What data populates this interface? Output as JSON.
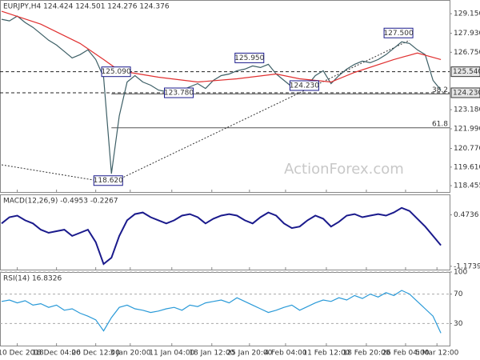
{
  "chart_data": [
    {
      "type": "line",
      "title": "EURJPY,H4 124.424 124.501 124.276 124.376",
      "watermark": "ActionForex.com",
      "ylim": [
        118.06,
        130.0
      ],
      "yticks": [
        {
          "value": 129.15,
          "label": "129.150"
        },
        {
          "value": 127.93,
          "label": "127.930"
        },
        {
          "value": 126.75,
          "label": "126.750"
        },
        {
          "value": 123.18,
          "label": "123.180"
        },
        {
          "value": 121.99,
          "label": "121.990"
        },
        {
          "value": 120.77,
          "label": "120.770"
        },
        {
          "value": 119.61,
          "label": "119.610"
        },
        {
          "value": 118.455,
          "label": "118.455"
        }
      ],
      "xlim": [
        0,
        56.5
      ],
      "xticks": [
        {
          "value": 2,
          "label": "10 Dec 2018"
        },
        {
          "value": 7,
          "label": "18 Dec 04:00"
        },
        {
          "value": 12,
          "label": "26 Dec 12:00"
        },
        {
          "value": 16.4,
          "label": "3 Jan 20:00"
        },
        {
          "value": 21.7,
          "label": "11 Jan 04:00"
        },
        {
          "value": 26.8,
          "label": "18 Jan 12:00"
        },
        {
          "value": 31.6,
          "label": "25 Jan 20:00"
        },
        {
          "value": 36.2,
          "label": "4 Feb 04:00"
        },
        {
          "value": 41.4,
          "label": "11 Feb 12:00"
        },
        {
          "value": 46.5,
          "label": "18 Feb 20:00"
        },
        {
          "value": 51.5,
          "label": "26 Feb 04:00"
        },
        {
          "value": 55.5,
          "label": "5 Mar 12:00"
        }
      ],
      "series": [
        {
          "color": "#3d5f66",
          "values": [
            128.8,
            128.7,
            129.0,
            128.6,
            128.3,
            127.9,
            127.5,
            127.2,
            126.8,
            126.4,
            126.6,
            126.9,
            126.3,
            125.2,
            119.2,
            122.8,
            124.9,
            125.3,
            124.9,
            124.7,
            124.4,
            124.3,
            124.1,
            124.4,
            124.6,
            124.8,
            124.5,
            125.0,
            125.3,
            125.4,
            125.6,
            125.7,
            125.9,
            125.8,
            126.0,
            125.4,
            125.0,
            124.6,
            124.4,
            124.7,
            125.3,
            125.6,
            124.8,
            125.3,
            125.7,
            126.0,
            126.2,
            126.1,
            126.3,
            126.6,
            127.0,
            127.4,
            127.3,
            126.9,
            126.6,
            125.0,
            124.4
          ]
        },
        {
          "color": "#e03030",
          "x": [
            0,
            5,
            10,
            13,
            15,
            20,
            25,
            30,
            35,
            38,
            42,
            45,
            50,
            53,
            56
          ],
          "values": [
            129.3,
            128.5,
            127.3,
            126.3,
            125.6,
            125.2,
            124.9,
            125.1,
            125.4,
            125.1,
            124.9,
            125.5,
            126.3,
            126.7,
            126.3
          ]
        }
      ],
      "trendline": {
        "x": [
          0,
          14,
          52
        ],
        "values": [
          119.75,
          118.62,
          127.5
        ]
      },
      "levels": [
        {
          "value": 125.54,
          "label": "125.540"
        },
        {
          "value": 124.23,
          "label": "124.230"
        }
      ],
      "fib": [
        {
          "value": 124.16,
          "label": "38.2"
        },
        {
          "value": 122.05,
          "label": "61.8"
        }
      ],
      "annotations": [
        {
          "x": 14,
          "value": 118.62,
          "label": "118.620"
        },
        {
          "x": 15,
          "value": 125.09,
          "label": "125.090"
        },
        {
          "x": 23,
          "value": 123.78,
          "label": "123.780"
        },
        {
          "x": 32,
          "value": 125.95,
          "label": "125.950"
        },
        {
          "x": 39,
          "value": 124.23,
          "label": "124.230"
        },
        {
          "x": 51,
          "value": 127.5,
          "label": "127.500"
        }
      ]
    },
    {
      "type": "line",
      "title": "MACD(12,26,9) -0.4953 -0.2267",
      "ylim": [
        -1.28,
        1.13
      ],
      "yticks": [
        0.4736,
        -1.1739
      ],
      "series": [
        {
          "color": "#1a1a8c",
          "values": [
            0.2,
            0.4,
            0.45,
            0.3,
            0.2,
            0.0,
            -0.1,
            -0.05,
            0.0,
            -0.2,
            -0.1,
            0.0,
            -0.4,
            -1.1,
            -0.9,
            -0.2,
            0.3,
            0.5,
            0.55,
            0.4,
            0.3,
            0.2,
            0.3,
            0.45,
            0.5,
            0.4,
            0.2,
            0.35,
            0.45,
            0.5,
            0.45,
            0.3,
            0.2,
            0.4,
            0.55,
            0.45,
            0.2,
            0.05,
            0.1,
            0.3,
            0.45,
            0.35,
            0.1,
            0.25,
            0.45,
            0.5,
            0.4,
            0.45,
            0.5,
            0.45,
            0.55,
            0.7,
            0.6,
            0.35,
            0.1,
            -0.2,
            -0.5
          ]
        }
      ]
    },
    {
      "type": "line",
      "title": "RSI(14) 16.8326",
      "ylim": [
        0,
        100
      ],
      "yticks": [
        100,
        70,
        30
      ],
      "series": [
        {
          "color": "#2a9ad8",
          "values": [
            60,
            62,
            58,
            61,
            55,
            57,
            52,
            55,
            48,
            50,
            44,
            40,
            35,
            20,
            38,
            52,
            55,
            50,
            48,
            45,
            47,
            50,
            52,
            48,
            55,
            53,
            58,
            60,
            62,
            58,
            65,
            60,
            55,
            50,
            45,
            48,
            52,
            55,
            48,
            53,
            58,
            62,
            60,
            65,
            62,
            68,
            64,
            70,
            66,
            72,
            68,
            75,
            70,
            60,
            50,
            40,
            17
          ]
        }
      ]
    }
  ]
}
